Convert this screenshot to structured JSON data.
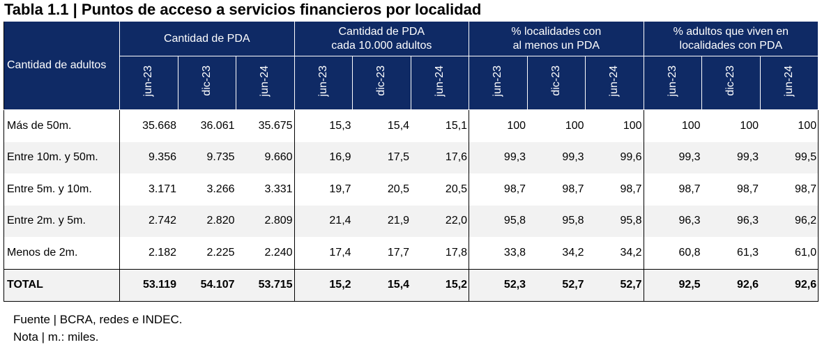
{
  "header": {
    "title": "Tabla 1.1 | Puntos de acceso a servicios financieros por localidad"
  },
  "table": {
    "corner": "Cantidad de adultos",
    "groups": [
      {
        "label": "Cantidad de PDA",
        "periods": [
          "jun-23",
          "dic-23",
          "jun-24"
        ]
      },
      {
        "label": "Cantidad de PDA\ncada 10.000 adultos",
        "periods": [
          "jun-23",
          "dic-23",
          "jun-24"
        ]
      },
      {
        "label": "% localidades con\nal menos un PDA",
        "periods": [
          "jun-23",
          "dic-23",
          "jun-24"
        ]
      },
      {
        "label": "% adultos que viven en\nlocalidades con PDA",
        "periods": [
          "jun-23",
          "dic-23",
          "jun-24"
        ]
      }
    ],
    "rows": [
      {
        "label": "Más de 50m.",
        "values": [
          "35.668",
          "36.061",
          "35.675",
          "15,3",
          "15,4",
          "15,1",
          "100",
          "100",
          "100",
          "100",
          "100",
          "100"
        ]
      },
      {
        "label": "Entre 10m. y 50m.",
        "values": [
          "9.356",
          "9.735",
          "9.660",
          "16,9",
          "17,5",
          "17,6",
          "99,3",
          "99,3",
          "99,6",
          "99,3",
          "99,3",
          "99,5"
        ]
      },
      {
        "label": "Entre 5m. y 10m.",
        "values": [
          "3.171",
          "3.266",
          "3.331",
          "19,7",
          "20,5",
          "20,5",
          "98,7",
          "98,7",
          "98,7",
          "98,7",
          "98,7",
          "98,7"
        ]
      },
      {
        "label": "Entre  2m. y 5m.",
        "values": [
          "2.742",
          "2.820",
          "2.809",
          "21,4",
          "21,9",
          "22,0",
          "95,8",
          "95,8",
          "95,8",
          "96,3",
          "96,3",
          "96,2"
        ]
      },
      {
        "label": "Menos de 2m.",
        "values": [
          "2.182",
          "2.225",
          "2.240",
          "17,4",
          "17,7",
          "17,8",
          "33,8",
          "34,2",
          "34,2",
          "60,8",
          "61,3",
          "61,0"
        ]
      }
    ],
    "total": {
      "label": "TOTAL",
      "values": [
        "53.119",
        "54.107",
        "53.715",
        "15,2",
        "15,4",
        "15,2",
        "52,3",
        "52,7",
        "52,7",
        "92,5",
        "92,6",
        "92,6"
      ]
    }
  },
  "footer": {
    "source": "Fuente | BCRA, redes e INDEC.",
    "note": "Nota | m.: miles."
  }
}
